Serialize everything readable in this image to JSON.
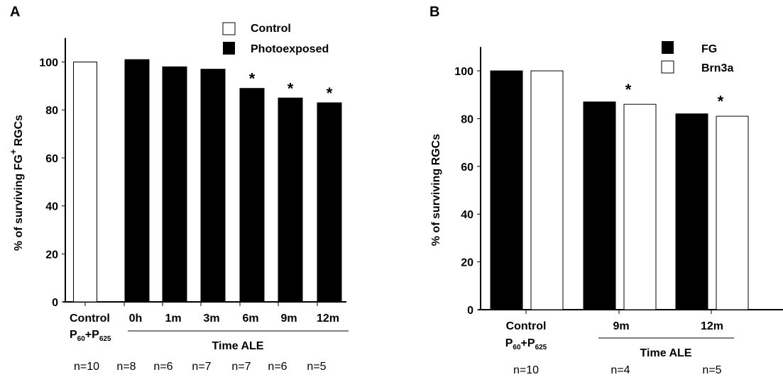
{
  "chart_data": [
    {
      "panel_label": "A",
      "type": "bar",
      "title": "",
      "ylabel": "% of surviving FG",
      "ylabel_sup": "+",
      "ylabel_suffix": "RGCs",
      "ylim": [
        0,
        110
      ],
      "yticks": [
        0,
        20,
        40,
        60,
        80,
        100
      ],
      "grid": false,
      "legend": {
        "placement": "top-right",
        "entries": [
          {
            "name": "Control",
            "fill": "#ffffff"
          },
          {
            "name": "Photoexposed",
            "fill": "#000000"
          }
        ]
      },
      "categories": [
        "Control",
        "0h",
        "1m",
        "3m",
        "6m",
        "9m",
        "12m"
      ],
      "control_subtitle": {
        "p1": "P",
        "s1": "60",
        "plus": "+P",
        "s2": "625"
      },
      "group_label": "Time ALE",
      "values": [
        100,
        101,
        98,
        97,
        89,
        85,
        83
      ],
      "series_of_bar": [
        "Control",
        "Photoexposed",
        "Photoexposed",
        "Photoexposed",
        "Photoexposed",
        "Photoexposed",
        "Photoexposed"
      ],
      "significant": [
        false,
        false,
        false,
        false,
        true,
        true,
        true
      ],
      "significance_marker": "*",
      "n_labels": [
        "n=10",
        "n=8",
        "n=6",
        "n=7",
        "n=7",
        "n=6",
        "n=5"
      ]
    },
    {
      "panel_label": "B",
      "type": "bar",
      "title": "",
      "ylabel": "% of surviving RGCs",
      "ylim": [
        0,
        110
      ],
      "yticks": [
        0,
        20,
        40,
        60,
        80,
        100
      ],
      "grid": false,
      "legend": {
        "placement": "top-right",
        "entries": [
          {
            "name": "FG",
            "fill": "#000000"
          },
          {
            "name": "Brn3a",
            "fill": "#ffffff"
          }
        ]
      },
      "categories": [
        "Control",
        "9m",
        "12m"
      ],
      "control_subtitle": {
        "p1": "P",
        "s1": "60",
        "plus": "+P",
        "s2": "625"
      },
      "group_label": "Time ALE",
      "series": [
        {
          "name": "FG",
          "values": [
            100,
            87,
            82
          ]
        },
        {
          "name": "Brn3a",
          "values": [
            100,
            86,
            81
          ]
        }
      ],
      "significant": [
        false,
        true,
        true
      ],
      "significance_marker": "*",
      "n_labels": [
        "n=10",
        "n=4",
        "n=5"
      ]
    }
  ]
}
